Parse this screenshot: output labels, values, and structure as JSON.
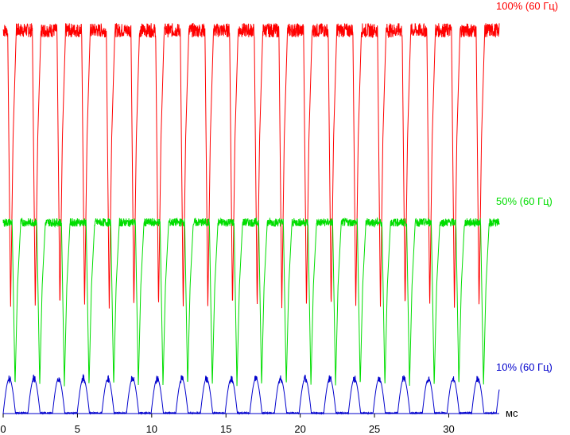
{
  "chart_data": {
    "type": "line",
    "title": "",
    "xlabel": "мс",
    "ylabel": "",
    "xlim": [
      0,
      33.4
    ],
    "x_ticks": [
      0,
      5,
      10,
      15,
      20,
      25,
      30
    ],
    "grid": false,
    "period_ms": 1.66,
    "cycles": 20,
    "series": [
      {
        "name": "100% (60 Гц)",
        "color": "#ff0000",
        "shape": "brightness drops to minimum once per cycle, then recovers",
        "high_level": 100,
        "low_level": 27,
        "dip_start_ms": 0.3
      },
      {
        "name": "50% (60 Гц)",
        "color": "#00dd00",
        "shape": "brightness drops to minimum once per cycle, then recovers",
        "high_level": 50,
        "low_level": 7,
        "dip_start_ms": 0.6
      },
      {
        "name": "10% (60 Гц)",
        "color": "#0000cc",
        "shape": "short pulse per cycle",
        "high_level": 9,
        "low_level": 0,
        "dip_start_ms": 0.0
      }
    ]
  }
}
